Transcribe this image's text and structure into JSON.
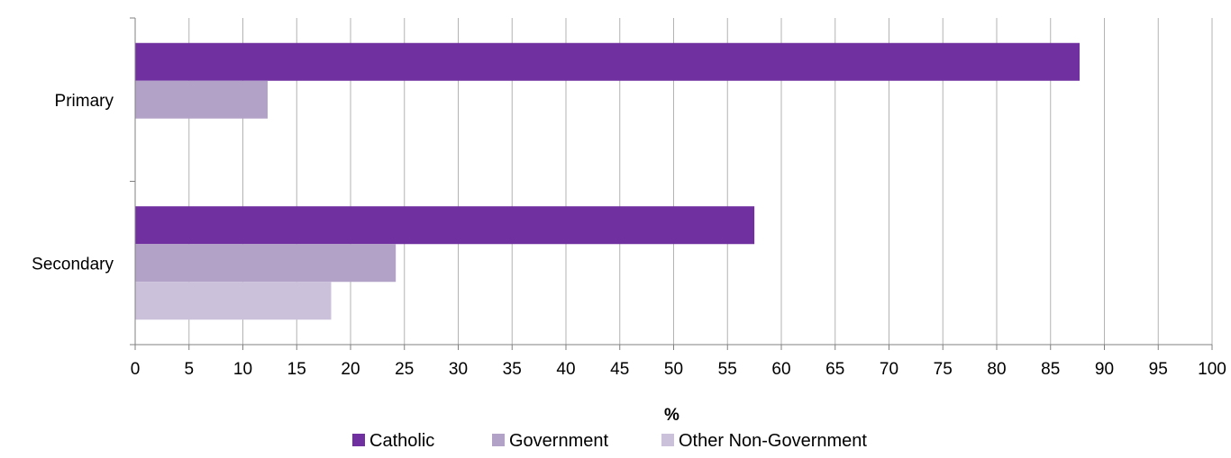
{
  "chart_data": {
    "type": "bar",
    "orientation": "horizontal",
    "categories": [
      "Primary",
      "Secondary"
    ],
    "series": [
      {
        "name": "Catholic",
        "color": "#7030a0",
        "values": [
          87.7,
          57.5
        ]
      },
      {
        "name": "Government",
        "color": "#b3a2c7",
        "values": [
          12.3,
          24.2
        ]
      },
      {
        "name": "Other Non-Government",
        "color": "#ccc1da",
        "values": [
          0,
          18.2
        ]
      }
    ],
    "xlabel": "%",
    "xlim": [
      0,
      100
    ],
    "xticks": [
      "0",
      "5",
      "10",
      "15",
      "20",
      "25",
      "30",
      "35",
      "40",
      "45",
      "50",
      "55",
      "60",
      "65",
      "70",
      "75",
      "80",
      "85",
      "90",
      "95",
      "100"
    ],
    "grid": "vertical",
    "legend": "bottom"
  }
}
